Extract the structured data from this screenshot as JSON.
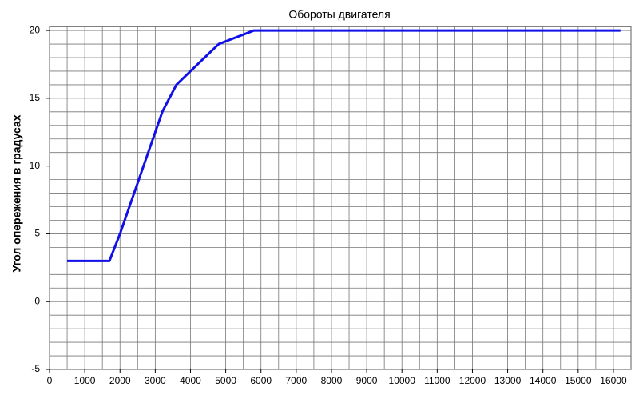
{
  "chart_data": {
    "type": "line",
    "title": "Обороты двигателя",
    "y_label": "Угол опережения в градусах",
    "x": [
      500,
      1700,
      2000,
      2400,
      2800,
      3200,
      3600,
      3800,
      4000,
      4400,
      4800,
      5200,
      5800,
      16200
    ],
    "series": [
      {
        "color": "#1010e8",
        "values": [
          3,
          3,
          5,
          8,
          11,
          14,
          16,
          16.5,
          17,
          18,
          19,
          19.4,
          20,
          20
        ]
      }
    ],
    "xlim": [
      0,
      16500
    ],
    "xticks": [
      0,
      1000,
      2000,
      3000,
      4000,
      5000,
      6000,
      7000,
      8000,
      9000,
      10000,
      11000,
      12000,
      13000,
      14000,
      15000,
      16000
    ],
    "ylim": [
      -5,
      20.3
    ],
    "yticks": [
      -5,
      0,
      5,
      10,
      15,
      20
    ],
    "grid": true,
    "x_minor_step": 500,
    "y_minor_step": 1
  }
}
